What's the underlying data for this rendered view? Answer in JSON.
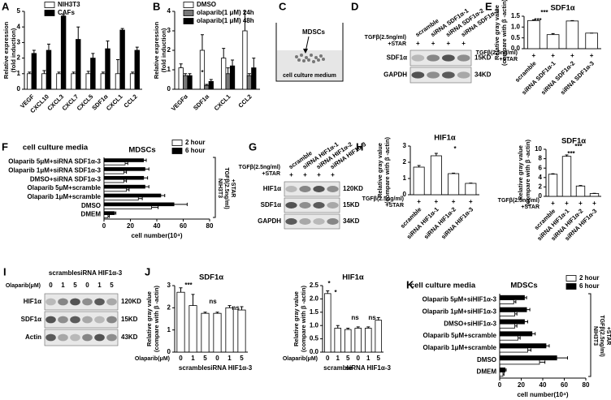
{
  "chart_data": [
    {
      "panel": "A",
      "type": "bar",
      "ylabel": [
        "Relative expression",
        "(fold induction)"
      ],
      "categories": [
        "VEGF",
        "CXCL10",
        "CXCL3",
        "CXCL7",
        "CXCL5",
        "SDF1α",
        "CXCL1",
        "CCL2"
      ],
      "series": [
        {
          "name": "NIH3T3",
          "color": "#ffffff",
          "values": [
            1,
            1,
            1,
            1,
            1,
            1,
            1,
            1
          ],
          "errors": [
            0.1,
            0.2,
            0.1,
            0.1,
            0.15,
            0.1,
            0.9,
            0.1
          ]
        },
        {
          "name": "CAFs",
          "color": "#000000",
          "values": [
            2.3,
            2.5,
            4.7,
            3.2,
            2.0,
            2.6,
            3.8,
            2.5
          ],
          "errors": [
            0.2,
            0.4,
            0.1,
            0.8,
            0.3,
            0.5,
            0.1,
            0.2
          ]
        }
      ],
      "ylim": [
        0,
        5
      ],
      "yticks": [
        0,
        1,
        2,
        3,
        4,
        5
      ],
      "legend": "upper left"
    },
    {
      "panel": "B",
      "type": "bar",
      "ylabel": [
        "Relative expression",
        "(fold induction)"
      ],
      "categories": [
        "VEGFα",
        "SDF1α",
        "CXCL1",
        "CCL2"
      ],
      "series": [
        {
          "name": "DMSO",
          "color": "#ffffff",
          "values": [
            1.1,
            2.0,
            1.6,
            3.0
          ],
          "errors": [
            0.2,
            0.8,
            0.5,
            1.0
          ]
        },
        {
          "name": "olaparib(1 μM) 24h",
          "color": "#777777",
          "values": [
            0.7,
            0.2,
            0.8,
            0.7
          ],
          "errors": [
            0.1,
            0.05,
            0.3,
            0.1
          ]
        },
        {
          "name": "olaparib(1 μM) 48h",
          "color": "#000000",
          "values": [
            0.7,
            0.4,
            1.2,
            1.1
          ],
          "errors": [
            0.1,
            0.1,
            0.3,
            0.5
          ]
        }
      ],
      "ylim": [
        0,
        4
      ],
      "yticks": [
        0,
        1,
        2,
        3,
        4
      ],
      "legend": "upper left",
      "annotations": [
        "*"
      ]
    },
    {
      "panel": "E",
      "type": "bar",
      "title": "SDF1α",
      "ylabel": [
        "Relative gray value",
        "(compare with β -actin)"
      ],
      "categories": [
        "scramble",
        "siRNA SDF1α-1",
        "siRNA SDF1α-2",
        "siRNA SDF1α-3"
      ],
      "values": [
        1.3,
        0.65,
        1.28,
        0.72
      ],
      "errors": [
        0.03,
        0.05,
        0.02,
        0
      ],
      "color": "#ffffff",
      "ylim": [
        0,
        1.5
      ],
      "yticks": [
        {
          "value": 0,
          "label": "0.0"
        },
        0.5,
        {
          "value": 1,
          "label": "1.0"
        },
        1.5
      ],
      "condition": [
        "TGFβ(2.5ng/ml)",
        "+STAR"
      ],
      "condition_signs": [
        "+",
        "+",
        "+",
        "+"
      ],
      "annotations": [
        "***",
        "***"
      ]
    },
    {
      "panel": "F",
      "type": "barh",
      "title": "cell culture media",
      "subtitle": "MDSCs",
      "xlabel": "cell number(10⁴)",
      "categories": [
        "Olaparib 5μM+siRNA SDF1α-3",
        "Olaparib 1μM+siRNA SDF1α-3",
        "DMSO+siRNA SDF1α-3",
        "Olaparib 5μM+scramble",
        "Olaparib 1μM+scramble",
        "DMSO",
        "DMEM"
      ],
      "series": [
        {
          "name": "2 hour",
          "color": "#ffffff",
          "values": [
            16,
            15,
            15,
            17,
            26,
            36,
            3
          ],
          "errors": [
            2,
            2,
            2,
            2,
            3,
            5,
            1
          ]
        },
        {
          "name": "6 hour",
          "color": "#000000",
          "values": [
            30,
            31,
            30,
            31,
            43,
            53,
            8
          ],
          "errors": [
            2,
            3,
            3,
            3,
            3,
            10,
            1
          ]
        }
      ],
      "xlim": [
        0,
        80
      ],
      "xticks": [
        0,
        20,
        40,
        60,
        80
      ],
      "legend": "upper right",
      "bracket": [
        "NIH3T3",
        "TGFβ(2.5ng/ml)",
        "+STAR"
      ]
    },
    {
      "panel": "H",
      "type": "bar",
      "title": "HIF1α",
      "ylabel": [
        "Relative gray value",
        "(compare with β -actin)"
      ],
      "categories": [
        "scramble",
        "siRNA HIF1α-1",
        "siRNA HIF1α-2",
        "siRNA HIF1α-3"
      ],
      "values": [
        1.7,
        2.4,
        1.3,
        0.7
      ],
      "errors": [
        0.1,
        0.15,
        0.03,
        0.02
      ],
      "color": "#ffffff",
      "ylim": [
        0,
        3
      ],
      "yticks": [
        0,
        1,
        2,
        3
      ],
      "condition": [
        "TGFβ(2.5ng/ml)",
        "+STAR"
      ],
      "condition_signs": [
        "+",
        "+",
        "+",
        "+"
      ],
      "annotations": [
        "*"
      ]
    },
    {
      "type": "bar",
      "title": "SDF1α",
      "ylabel": [
        "Relative gray value",
        "(compare with β -actin)"
      ],
      "categories": [
        "scramble",
        "siRNA HIF1α-1",
        "siRNA HIF1α-2",
        "siRNA HIF1α-3"
      ],
      "values": [
        4.7,
        8.5,
        2.2,
        0.6
      ],
      "errors": [
        0.1,
        0.3,
        0.1,
        0.05
      ],
      "color": "#ffffff",
      "ylim": [
        0,
        10
      ],
      "yticks": [
        0,
        2,
        4,
        6,
        8,
        10
      ],
      "condition": [
        "TGFβ(2.5ng/ml)",
        "+STAR"
      ],
      "condition_signs": [
        "+",
        "+",
        "+",
        "+"
      ],
      "annotations": [
        "***",
        "***"
      ]
    },
    {
      "panel": "J",
      "type": "bar",
      "title": "SDF1α",
      "ylabel": [
        "Relative gray value",
        "(compare with β -actin)"
      ],
      "categories": [
        "0",
        "1",
        "5",
        "0",
        "1",
        "5"
      ],
      "groups": [
        "scramble",
        "siRNA HIF1α-3"
      ],
      "x_label": "Olaparib(μM)",
      "values": [
        2.7,
        2.1,
        1.75,
        1.75,
        2.0,
        1.9
      ],
      "errors": [
        0.2,
        0.5,
        0.05,
        0.05,
        0.1,
        0.15
      ],
      "color": "#ffffff",
      "ylim": [
        0,
        3
      ],
      "yticks": [
        0,
        1,
        2,
        3
      ],
      "annotations": [
        "***",
        "ns",
        "ns"
      ]
    },
    {
      "type": "bar",
      "title": "HIF1α",
      "ylabel": [
        "Relative gray value",
        "(compare with β -actin)"
      ],
      "categories": [
        "0",
        "1",
        "5",
        "0",
        "1",
        "5"
      ],
      "groups": [
        "scramble",
        "siRNA HIF1α-3"
      ],
      "x_label": "Olaparib(μM)",
      "values": [
        2.2,
        0.9,
        0.85,
        0.9,
        0.9,
        1.2
      ],
      "errors": [
        0.1,
        0.1,
        0.05,
        0.05,
        0.05,
        0.1
      ],
      "color": "#ffffff",
      "ylim": [
        0,
        2.5
      ],
      "yticks": [
        {
          "value": 0,
          "label": "0.0"
        },
        0.5,
        {
          "value": 1,
          "label": "1.0"
        },
        1.5,
        {
          "value": 2,
          "label": "2.0"
        },
        2.5
      ],
      "annotations": [
        "*",
        "*",
        "ns",
        "ns"
      ]
    },
    {
      "panel": "K",
      "type": "barh",
      "title": "cell culture media",
      "subtitle": "MDSCs",
      "xlabel": "cell number(10⁴)",
      "categories": [
        "Olaparib 5μM+siHIF1α-3",
        "Olaparib 1μM+siHIF1α-3",
        "DMSO+siHIF1α-3",
        "Olaparib 5μM+scramble",
        "Olaparib 1μM+scramble",
        "DMSO",
        "DMEM"
      ],
      "series": [
        {
          "name": "2 hour",
          "color": "#ffffff",
          "values": [
            13,
            14,
            14,
            17,
            26,
            37,
            3
          ],
          "errors": [
            2,
            2,
            2,
            2,
            3,
            5,
            1
          ]
        },
        {
          "name": "6 hour",
          "color": "#000000",
          "values": [
            23,
            25,
            23,
            30,
            43,
            53,
            5
          ],
          "errors": [
            2,
            3,
            3,
            3,
            3,
            10,
            1
          ]
        }
      ],
      "xlim": [
        0,
        80
      ],
      "xticks": [
        0,
        20,
        40,
        60,
        80
      ],
      "legend": "upper right",
      "bracket": [
        "NIH3T3",
        "TGFβ(2.5ng/ml)",
        "+STAR"
      ]
    }
  ],
  "diagram": {
    "panel": "C",
    "label": "MDSCs",
    "medium": "cell culture medium"
  },
  "blots": [
    {
      "panel": "D",
      "lanes": [
        "scramble",
        "siRNA SDF1α-1",
        "siRNA SDF1α-2",
        "siRNA SDF1α-3"
      ],
      "treatment": [
        "TGFβ(2.5ng/ml)",
        "+STAR"
      ],
      "signs": [
        "+",
        "+",
        "+",
        "+"
      ],
      "rows": [
        {
          "name": "SDF1α",
          "size": "15KD"
        },
        {
          "name": "GAPDH",
          "size": "34KD"
        }
      ]
    },
    {
      "panel": "G",
      "lanes": [
        "scramble",
        "siRNA HIF1α-1",
        "siRNA HIF1α-2",
        "siRNA HIF1α-3"
      ],
      "treatment": [
        "TGFβ(2.5ng/ml)",
        "+STAR"
      ],
      "signs": [
        "+",
        "+",
        "+",
        "+"
      ],
      "rows": [
        {
          "name": "HIF1α",
          "size": "120KD"
        },
        {
          "name": "SDF1α",
          "size": "15KD"
        },
        {
          "name": "GAPDH",
          "size": "34KD"
        }
      ]
    },
    {
      "panel": "I",
      "groups": [
        "scramble",
        "siRNA HIF1α-3"
      ],
      "treatment": [
        "Olaparib(μM)"
      ],
      "signs": [
        "0",
        "1",
        "5",
        "0",
        "1",
        "5"
      ],
      "rows": [
        {
          "name": "HIF1α",
          "size": "120KD"
        },
        {
          "name": "SDF1α",
          "size": "15KD"
        },
        {
          "name": "Actin",
          "size": "43KD"
        }
      ]
    }
  ]
}
